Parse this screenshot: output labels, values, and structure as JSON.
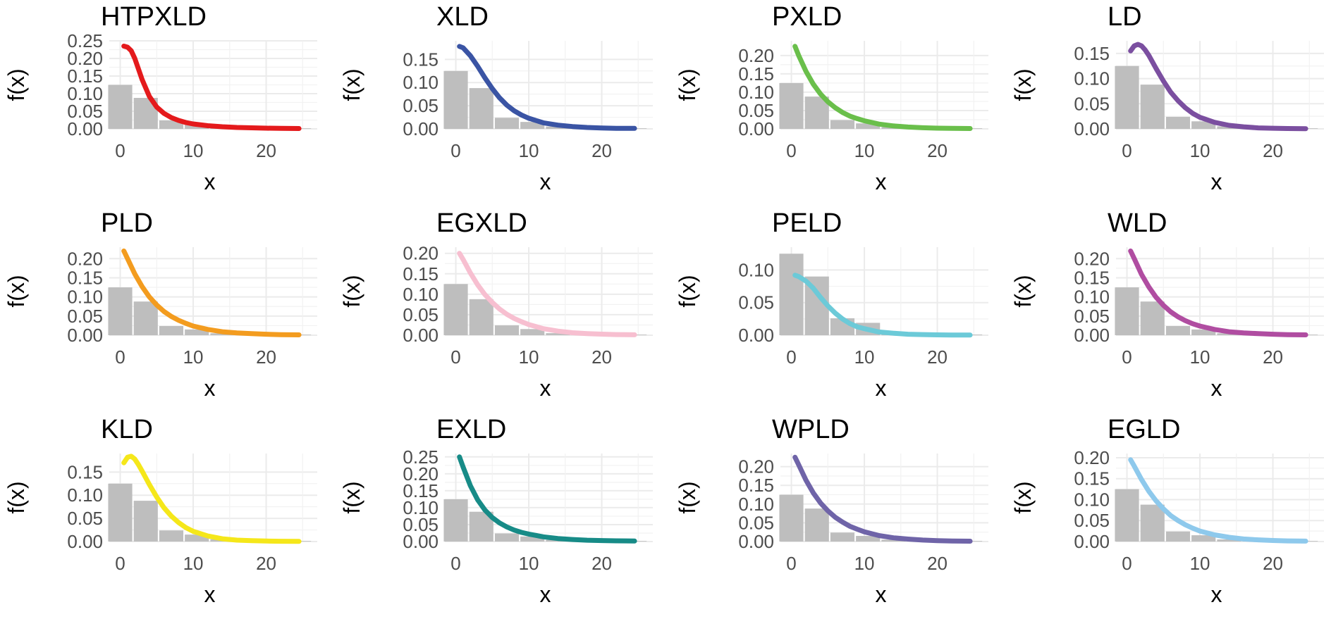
{
  "chart_data": [
    {
      "type": "bar+line",
      "title": "HTPXLD",
      "xlabel": "x",
      "ylabel": "f(x)",
      "xlim": [
        -1.5,
        27
      ],
      "ylim": [
        0,
        0.25
      ],
      "yticks": [
        0,
        0.05,
        0.1,
        0.15,
        0.2,
        0.25
      ],
      "ytick_labels": [
        "0.00",
        "0.05",
        "0.10",
        "0.15",
        "0.20",
        "0.25"
      ],
      "xticks": [
        0,
        10,
        20
      ],
      "xtick_labels": [
        "0",
        "10",
        "20"
      ],
      "color": "#e41a1c",
      "bars": {
        "x": [
          0,
          3.5,
          7,
          10.5,
          14,
          17.5,
          21,
          24.5
        ],
        "width": 3.3,
        "values": [
          0.125,
          0.088,
          0.024,
          0.015,
          0.005,
          0.002,
          0.001,
          0.001
        ]
      },
      "curve": {
        "x": [
          0.5,
          1,
          1.5,
          2,
          2.5,
          3,
          4,
          5,
          6,
          7,
          8,
          9,
          10,
          12,
          14,
          16,
          18,
          20,
          22,
          24.5
        ],
        "y": [
          0.235,
          0.232,
          0.222,
          0.2,
          0.17,
          0.14,
          0.092,
          0.062,
          0.044,
          0.032,
          0.024,
          0.018,
          0.014,
          0.009,
          0.006,
          0.004,
          0.003,
          0.002,
          0.0015,
          0.001
        ]
      }
    },
    {
      "type": "bar+line",
      "title": "XLD",
      "xlabel": "x",
      "ylabel": "f(x)",
      "xlim": [
        -1.5,
        27
      ],
      "ylim": [
        0,
        0.19
      ],
      "yticks": [
        0,
        0.05,
        0.1,
        0.15
      ],
      "ytick_labels": [
        "0.00",
        "0.05",
        "0.10",
        "0.15"
      ],
      "xticks": [
        0,
        10,
        20
      ],
      "xtick_labels": [
        "0",
        "10",
        "20"
      ],
      "color": "#3a54a4",
      "bars": {
        "x": [
          0,
          3.5,
          7,
          10.5,
          14,
          17.5,
          21,
          24.5
        ],
        "width": 3.3,
        "values": [
          0.125,
          0.088,
          0.024,
          0.015,
          0.005,
          0.002,
          0.001,
          0.001
        ]
      },
      "curve": {
        "x": [
          0.5,
          1,
          2,
          3,
          4,
          5,
          6,
          7,
          8,
          9,
          10,
          12,
          14,
          16,
          18,
          20,
          22,
          24.5
        ],
        "y": [
          0.178,
          0.175,
          0.158,
          0.135,
          0.11,
          0.087,
          0.067,
          0.051,
          0.039,
          0.03,
          0.023,
          0.013,
          0.008,
          0.005,
          0.003,
          0.002,
          0.001,
          0.001
        ]
      }
    },
    {
      "type": "bar+line",
      "title": "PXLD",
      "xlabel": "x",
      "ylabel": "f(x)",
      "xlim": [
        -1.5,
        27
      ],
      "ylim": [
        0,
        0.24
      ],
      "yticks": [
        0,
        0.05,
        0.1,
        0.15,
        0.2
      ],
      "ytick_labels": [
        "0.00",
        "0.05",
        "0.10",
        "0.15",
        "0.20"
      ],
      "xticks": [
        0,
        10,
        20
      ],
      "xtick_labels": [
        "0",
        "10",
        "20"
      ],
      "color": "#6abf4b",
      "bars": {
        "x": [
          0,
          3.5,
          7,
          10.5,
          14,
          17.5,
          21,
          24.5
        ],
        "width": 3.3,
        "values": [
          0.125,
          0.088,
          0.024,
          0.015,
          0.005,
          0.002,
          0.001,
          0.001
        ]
      },
      "curve": {
        "x": [
          0.5,
          1,
          2,
          3,
          4,
          5,
          6,
          7,
          8,
          9,
          10,
          12,
          14,
          16,
          18,
          20,
          22,
          24.5
        ],
        "y": [
          0.225,
          0.2,
          0.157,
          0.122,
          0.095,
          0.074,
          0.058,
          0.045,
          0.035,
          0.028,
          0.022,
          0.013,
          0.008,
          0.005,
          0.003,
          0.002,
          0.0015,
          0.001
        ]
      }
    },
    {
      "type": "bar+line",
      "title": "LD",
      "xlabel": "x",
      "ylabel": "f(x)",
      "xlim": [
        -1.5,
        27
      ],
      "ylim": [
        0,
        0.175
      ],
      "yticks": [
        0,
        0.05,
        0.1,
        0.15
      ],
      "ytick_labels": [
        "0.00",
        "0.05",
        "0.10",
        "0.15"
      ],
      "xticks": [
        0,
        10,
        20
      ],
      "xtick_labels": [
        "0",
        "10",
        "20"
      ],
      "color": "#7b4fa0",
      "bars": {
        "x": [
          0,
          3.5,
          7,
          10.5,
          14,
          17.5,
          21,
          24.5
        ],
        "width": 3.3,
        "values": [
          0.125,
          0.088,
          0.024,
          0.015,
          0.005,
          0.002,
          0.001,
          0.001
        ]
      },
      "curve": {
        "x": [
          0.5,
          1,
          1.5,
          2,
          2.5,
          3,
          4,
          5,
          6,
          7,
          8,
          9,
          10,
          12,
          14,
          16,
          18,
          20,
          22,
          24.5
        ],
        "y": [
          0.155,
          0.165,
          0.168,
          0.165,
          0.157,
          0.146,
          0.12,
          0.095,
          0.073,
          0.056,
          0.042,
          0.031,
          0.023,
          0.013,
          0.007,
          0.004,
          0.002,
          0.0012,
          0.0007,
          0.0004
        ]
      }
    },
    {
      "type": "bar+line",
      "title": "PLD",
      "xlabel": "x",
      "ylabel": "f(x)",
      "xlim": [
        -1.5,
        27
      ],
      "ylim": [
        0,
        0.23
      ],
      "yticks": [
        0,
        0.05,
        0.1,
        0.15,
        0.2
      ],
      "ytick_labels": [
        "0.00",
        "0.05",
        "0.10",
        "0.15",
        "0.20"
      ],
      "xticks": [
        0,
        10,
        20
      ],
      "xtick_labels": [
        "0",
        "10",
        "20"
      ],
      "color": "#f39c1f",
      "bars": {
        "x": [
          0,
          3.5,
          7,
          10.5,
          14,
          17.5,
          21,
          24.5
        ],
        "width": 3.3,
        "values": [
          0.125,
          0.088,
          0.024,
          0.015,
          0.005,
          0.002,
          0.001,
          0.001
        ]
      },
      "curve": {
        "x": [
          0.5,
          1,
          2,
          3,
          4,
          5,
          6,
          7,
          8,
          9,
          10,
          12,
          14,
          16,
          18,
          20,
          22,
          24.5
        ],
        "y": [
          0.22,
          0.2,
          0.16,
          0.127,
          0.1,
          0.079,
          0.062,
          0.049,
          0.039,
          0.031,
          0.024,
          0.015,
          0.009,
          0.006,
          0.004,
          0.0025,
          0.0015,
          0.001
        ]
      }
    },
    {
      "type": "bar+line",
      "title": "EGXLD",
      "xlabel": "x",
      "ylabel": "f(x)",
      "xlim": [
        -1.5,
        27
      ],
      "ylim": [
        0,
        0.215
      ],
      "yticks": [
        0,
        0.05,
        0.1,
        0.15,
        0.2
      ],
      "ytick_labels": [
        "0.00",
        "0.05",
        "0.10",
        "0.15",
        "0.20"
      ],
      "xticks": [
        0,
        10,
        20
      ],
      "xtick_labels": [
        "0",
        "10",
        "20"
      ],
      "color": "#f7bfd0",
      "bars": {
        "x": [
          0,
          3.5,
          7,
          10.5,
          14,
          17.5,
          21,
          24.5
        ],
        "width": 3.3,
        "values": [
          0.125,
          0.088,
          0.024,
          0.015,
          0.005,
          0.002,
          0.001,
          0.001
        ]
      },
      "curve": {
        "x": [
          0.5,
          1,
          2,
          3,
          4,
          5,
          6,
          7,
          8,
          9,
          10,
          12,
          14,
          16,
          18,
          20,
          22,
          24.5
        ],
        "y": [
          0.2,
          0.185,
          0.152,
          0.123,
          0.099,
          0.08,
          0.064,
          0.051,
          0.041,
          0.033,
          0.026,
          0.016,
          0.01,
          0.006,
          0.004,
          0.0025,
          0.0015,
          0.001
        ]
      }
    },
    {
      "type": "bar+line",
      "title": "PELD",
      "xlabel": "x",
      "ylabel": "f(x)",
      "xlim": [
        -1.5,
        27
      ],
      "ylim": [
        0,
        0.135
      ],
      "yticks": [
        0,
        0.05,
        0.1
      ],
      "ytick_labels": [
        "0.00",
        "0.05",
        "0.10"
      ],
      "xticks": [
        0,
        10,
        20
      ],
      "xtick_labels": [
        "0",
        "10",
        "20"
      ],
      "color": "#6ccad8",
      "bars": {
        "x": [
          0,
          3.5,
          7,
          10.5,
          14,
          17.5,
          21,
          24.5
        ],
        "width": 3.3,
        "values": [
          0.125,
          0.09,
          0.026,
          0.019,
          0.004,
          0.002,
          0.001,
          0.001
        ]
      },
      "curve": {
        "x": [
          0.5,
          1,
          2,
          3,
          4,
          5,
          6,
          7,
          8,
          9,
          10,
          12,
          14,
          16,
          18,
          20,
          22,
          24.5
        ],
        "y": [
          0.092,
          0.09,
          0.083,
          0.072,
          0.058,
          0.045,
          0.034,
          0.025,
          0.018,
          0.013,
          0.01,
          0.005,
          0.003,
          0.0015,
          0.001,
          0.0005,
          0.0003,
          0.0002
        ]
      }
    },
    {
      "type": "bar+line",
      "title": "WLD",
      "xlabel": "x",
      "ylabel": "f(x)",
      "xlim": [
        -1.5,
        27
      ],
      "ylim": [
        0,
        0.23
      ],
      "yticks": [
        0,
        0.05,
        0.1,
        0.15,
        0.2
      ],
      "ytick_labels": [
        "0.00",
        "0.05",
        "0.10",
        "0.15",
        "0.20"
      ],
      "xticks": [
        0,
        10,
        20
      ],
      "xtick_labels": [
        "0",
        "10",
        "20"
      ],
      "color": "#b04da1",
      "bars": {
        "x": [
          0,
          3.5,
          7,
          10.5,
          14,
          17.5,
          21,
          24.5
        ],
        "width": 3.3,
        "values": [
          0.125,
          0.088,
          0.024,
          0.015,
          0.005,
          0.002,
          0.001,
          0.001
        ]
      },
      "curve": {
        "x": [
          0.5,
          1,
          2,
          3,
          4,
          5,
          6,
          7,
          8,
          9,
          10,
          12,
          14,
          16,
          18,
          20,
          22,
          24.5
        ],
        "y": [
          0.22,
          0.2,
          0.159,
          0.126,
          0.099,
          0.078,
          0.061,
          0.048,
          0.038,
          0.03,
          0.024,
          0.015,
          0.009,
          0.006,
          0.004,
          0.0025,
          0.0015,
          0.001
        ]
      }
    },
    {
      "type": "bar+line",
      "title": "KLD",
      "xlabel": "x",
      "ylabel": "f(x)",
      "xlim": [
        -1.5,
        27
      ],
      "ylim": [
        0,
        0.19
      ],
      "yticks": [
        0,
        0.05,
        0.1,
        0.15
      ],
      "ytick_labels": [
        "0.00",
        "0.05",
        "0.10",
        "0.15"
      ],
      "xticks": [
        0,
        10,
        20
      ],
      "xtick_labels": [
        "0",
        "10",
        "20"
      ],
      "color": "#f5e71a",
      "bars": {
        "x": [
          0,
          3.5,
          7,
          10.5,
          14,
          17.5,
          21,
          24.5
        ],
        "width": 3.3,
        "values": [
          0.125,
          0.088,
          0.024,
          0.015,
          0.005,
          0.002,
          0.001,
          0.001
        ]
      },
      "curve": {
        "x": [
          0.5,
          1,
          1.5,
          2,
          2.5,
          3,
          4,
          5,
          6,
          7,
          8,
          9,
          10,
          12,
          14,
          16,
          18,
          20,
          22,
          24.5
        ],
        "y": [
          0.17,
          0.182,
          0.184,
          0.178,
          0.166,
          0.152,
          0.123,
          0.096,
          0.073,
          0.055,
          0.041,
          0.03,
          0.022,
          0.012,
          0.006,
          0.003,
          0.002,
          0.001,
          0.0006,
          0.0003
        ]
      }
    },
    {
      "type": "bar+line",
      "title": "EXLD",
      "xlabel": "x",
      "ylabel": "f(x)",
      "xlim": [
        -1.5,
        27
      ],
      "ylim": [
        0,
        0.26
      ],
      "yticks": [
        0,
        0.05,
        0.1,
        0.15,
        0.2,
        0.25
      ],
      "ytick_labels": [
        "0.00",
        "0.05",
        "0.10",
        "0.15",
        "0.20",
        "0.25"
      ],
      "xticks": [
        0,
        10,
        20
      ],
      "xtick_labels": [
        "0",
        "10",
        "20"
      ],
      "color": "#178b87",
      "bars": {
        "x": [
          0,
          3.5,
          7,
          10.5,
          14,
          17.5,
          21,
          24.5
        ],
        "width": 3.3,
        "values": [
          0.125,
          0.088,
          0.024,
          0.015,
          0.005,
          0.002,
          0.001,
          0.001
        ]
      },
      "curve": {
        "x": [
          0.5,
          1,
          2,
          3,
          4,
          5,
          6,
          7,
          8,
          9,
          10,
          12,
          14,
          16,
          18,
          20,
          22,
          24.5
        ],
        "y": [
          0.25,
          0.22,
          0.165,
          0.123,
          0.093,
          0.071,
          0.055,
          0.043,
          0.034,
          0.027,
          0.022,
          0.014,
          0.009,
          0.006,
          0.004,
          0.003,
          0.002,
          0.0015
        ]
      }
    },
    {
      "type": "bar+line",
      "title": "WPLD",
      "xlabel": "x",
      "ylabel": "f(x)",
      "xlim": [
        -1.5,
        27
      ],
      "ylim": [
        0,
        0.235
      ],
      "yticks": [
        0,
        0.05,
        0.1,
        0.15,
        0.2
      ],
      "ytick_labels": [
        "0.00",
        "0.05",
        "0.10",
        "0.15",
        "0.20"
      ],
      "xticks": [
        0,
        10,
        20
      ],
      "xtick_labels": [
        "0",
        "10",
        "20"
      ],
      "color": "#6f64a8",
      "bars": {
        "x": [
          0,
          3.5,
          7,
          10.5,
          14,
          17.5,
          21,
          24.5
        ],
        "width": 3.3,
        "values": [
          0.125,
          0.088,
          0.024,
          0.015,
          0.005,
          0.002,
          0.001,
          0.001
        ]
      },
      "curve": {
        "x": [
          0.5,
          1,
          2,
          3,
          4,
          5,
          6,
          7,
          8,
          9,
          10,
          12,
          14,
          16,
          18,
          20,
          22,
          24.5
        ],
        "y": [
          0.225,
          0.205,
          0.164,
          0.13,
          0.103,
          0.082,
          0.065,
          0.052,
          0.041,
          0.033,
          0.026,
          0.016,
          0.01,
          0.0065,
          0.004,
          0.0025,
          0.0015,
          0.001
        ]
      }
    },
    {
      "type": "bar+line",
      "title": "EGLD",
      "xlabel": "x",
      "ylabel": "f(x)",
      "xlim": [
        -1.5,
        27
      ],
      "ylim": [
        0,
        0.21
      ],
      "yticks": [
        0,
        0.05,
        0.1,
        0.15,
        0.2
      ],
      "ytick_labels": [
        "0.00",
        "0.05",
        "0.10",
        "0.15",
        "0.20"
      ],
      "xticks": [
        0,
        10,
        20
      ],
      "xtick_labels": [
        "0",
        "10",
        "20"
      ],
      "color": "#8ec9ec",
      "bars": {
        "x": [
          0,
          3.5,
          7,
          10.5,
          14,
          17.5,
          21,
          24.5
        ],
        "width": 3.3,
        "values": [
          0.125,
          0.088,
          0.024,
          0.015,
          0.005,
          0.002,
          0.001,
          0.001
        ]
      },
      "curve": {
        "x": [
          0.5,
          1,
          2,
          3,
          4,
          5,
          6,
          7,
          8,
          9,
          10,
          12,
          14,
          16,
          18,
          20,
          22,
          24.5
        ],
        "y": [
          0.195,
          0.18,
          0.148,
          0.12,
          0.097,
          0.078,
          0.062,
          0.05,
          0.04,
          0.032,
          0.025,
          0.016,
          0.01,
          0.006,
          0.004,
          0.0025,
          0.0015,
          0.001
        ]
      }
    }
  ]
}
